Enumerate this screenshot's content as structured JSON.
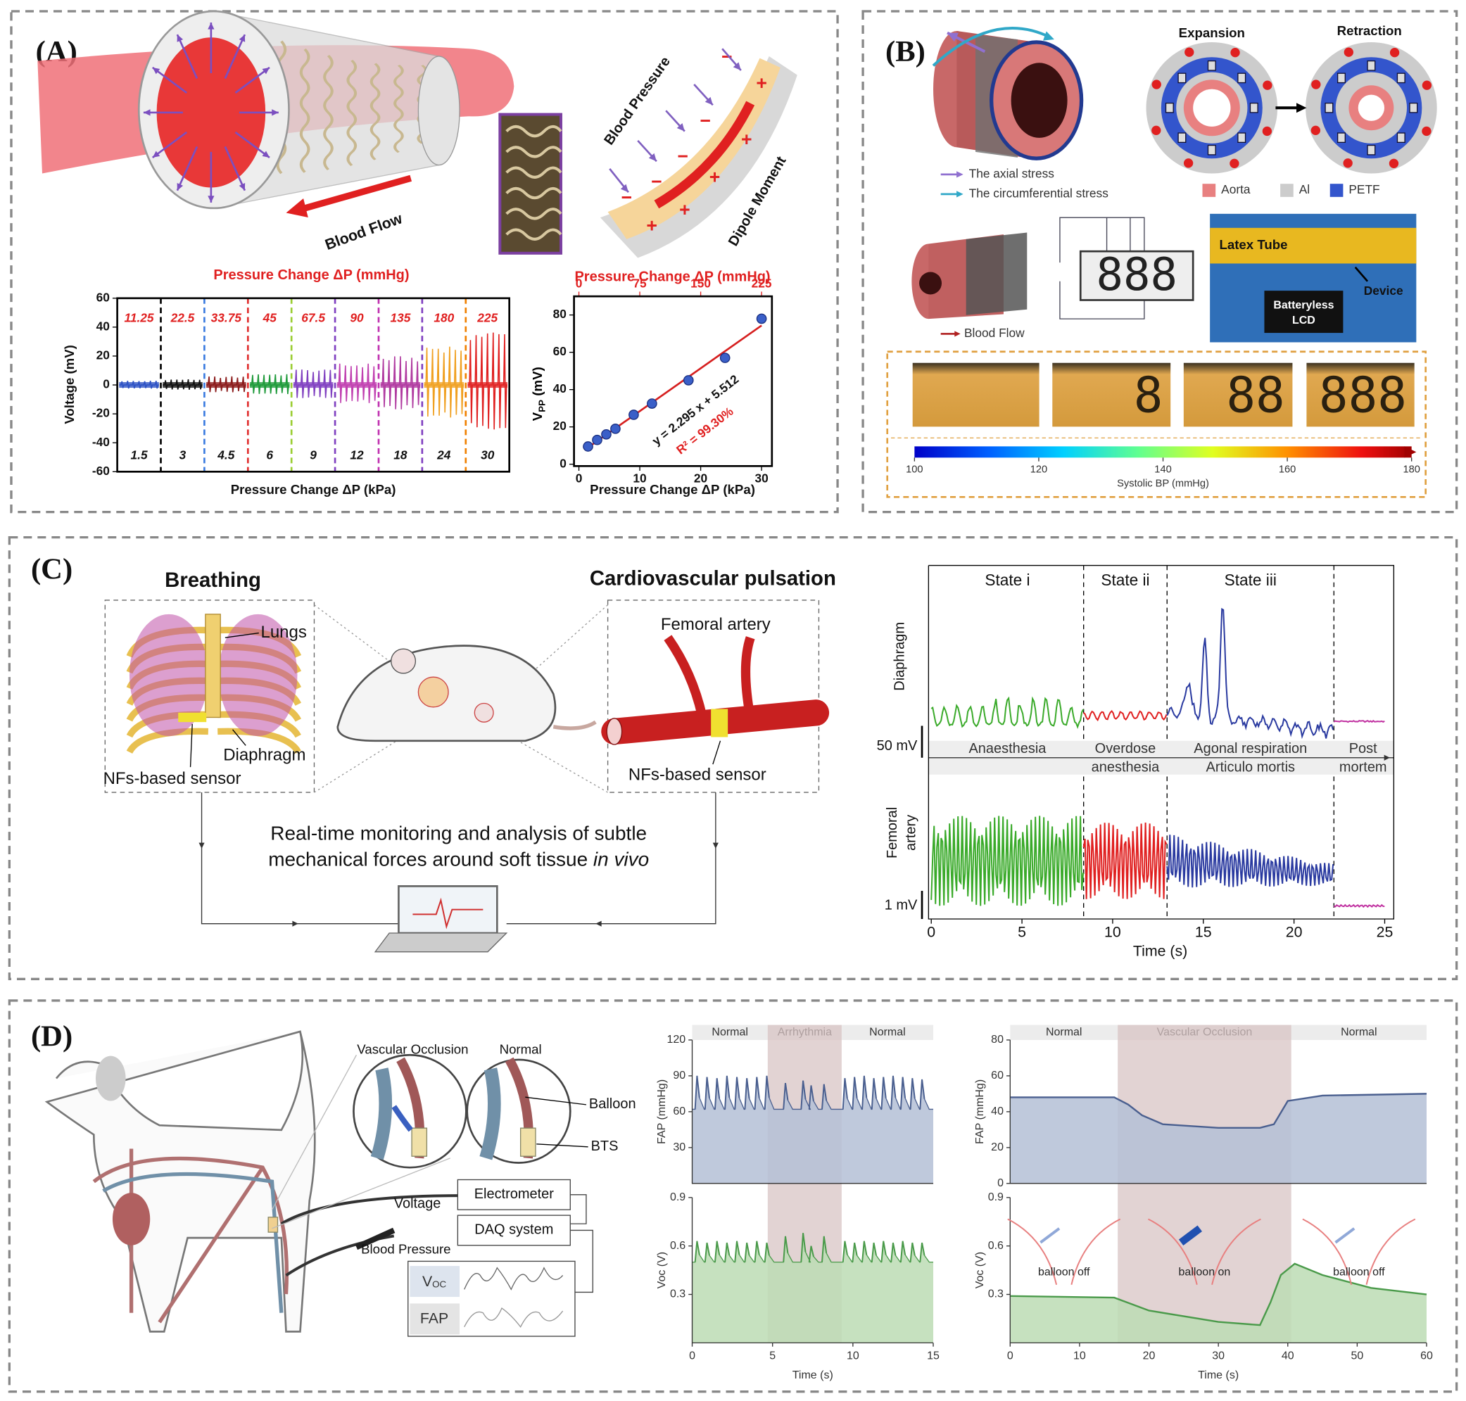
{
  "panel_a": {
    "label": "(A)",
    "diagram": {
      "blood_flow": "Blood Flow",
      "blood_pressure": "Blood Pressure",
      "dipole_moment": "Dipole Moment"
    },
    "chart_data": [
      {
        "type": "segmented-signal",
        "title": "Pressure Change ΔP (mmHg)",
        "xlabel": "Pressure Change ΔP (kPa)",
        "ylabel": "Voltage (mV)",
        "ylim": [
          -60,
          60
        ],
        "yticks": [
          -60,
          -40,
          -20,
          0,
          20,
          40,
          60
        ],
        "segments": [
          {
            "top_label": 11.25,
            "bottom_label": 1.5,
            "color": "#2d52c4",
            "amplitude": 3
          },
          {
            "top_label": 22.5,
            "bottom_label": 3,
            "color": "#111111",
            "amplitude": 4,
            "divider_color": "#000000"
          },
          {
            "top_label": 33.75,
            "bottom_label": 4.5,
            "color": "#8b1a1a",
            "amplitude": 6,
            "divider_color": "#3a7be0"
          },
          {
            "top_label": 45,
            "bottom_label": 6,
            "color": "#1e9a3a",
            "amplitude": 8,
            "divider_color": "#e03030"
          },
          {
            "top_label": 67.5,
            "bottom_label": 9,
            "color": "#8040c0",
            "amplitude": 11,
            "divider_color": "#9acd32"
          },
          {
            "top_label": 90,
            "bottom_label": 12,
            "color": "#c040b0",
            "amplitude": 15,
            "divider_color": "#8040c0"
          },
          {
            "top_label": 135,
            "bottom_label": 18,
            "color": "#b03aa0",
            "amplitude": 20,
            "divider_color": "#c030b0"
          },
          {
            "top_label": 180,
            "bottom_label": 24,
            "color": "#f0a020",
            "amplitude": 28,
            "divider_color": "#8040c0"
          },
          {
            "top_label": 225,
            "bottom_label": 30,
            "color": "#e02020",
            "amplitude": 38,
            "divider_color": "#f08000"
          }
        ]
      },
      {
        "type": "scatter",
        "xlabel": "Pressure Change ΔP (kPa)",
        "x2label": "Pressure Change ΔP (mmHg)",
        "ylabel": "V",
        "ylabel_subscript": "PP",
        "ylabel_unit": "(mV)",
        "x": [
          1.5,
          3,
          4.5,
          6,
          9,
          12,
          18,
          24,
          30
        ],
        "values": [
          9.5,
          13,
          16,
          19,
          26.5,
          32.5,
          45,
          57,
          78
        ],
        "xlim": [
          -0.8,
          31.7
        ],
        "xticks": [
          0,
          10,
          20,
          30
        ],
        "x2lim": [
          -6,
          237.75
        ],
        "x2ticks": [
          0,
          75,
          150,
          225
        ],
        "ylim": [
          -1,
          90
        ],
        "yticks": [
          0,
          20,
          40,
          60,
          80
        ],
        "color": "#3a5fc8",
        "fit": {
          "slope": 2.295,
          "intercept": 5.512,
          "color": "#d62020"
        },
        "equation": "y = 2.295 x + 5.512",
        "r2": "R² = 99.30%"
      }
    ]
  },
  "panel_b": {
    "label": "(B)",
    "expansion": "Expansion",
    "retraction": "Retraction",
    "axial": "The axial stress",
    "circumferential": "The circumferential stress",
    "legend": [
      {
        "name": "Aorta",
        "color": "#e88080"
      },
      {
        "name": "Al",
        "color": "#cccccc"
      },
      {
        "name": "PETF",
        "color": "#3355cc"
      }
    ],
    "blood_flow": "Blood Flow",
    "lcd_digits": "888",
    "latex_tube": "Latex Tube",
    "device": "Device",
    "batteryless": "Batteryless",
    "lcd": "LCD",
    "frames": [
      "8",
      "88",
      "888"
    ],
    "colorbar": {
      "label": "Systolic BP (mmHg)",
      "clim": [
        100,
        180
      ],
      "ticks": [
        100,
        120,
        140,
        160,
        180
      ]
    }
  },
  "panel_c": {
    "label": "(C)",
    "breathing": "Breathing",
    "cardio": "Cardiovascular pulsation",
    "lungs": "Lungs",
    "diaphragm": "Diaphragm",
    "sensor_left": "NFs-based sensor",
    "femoral": "Femoral artery",
    "sensor_right": "NFs-based sensor",
    "caption_line1": "Real-time monitoring and analysis of subtle",
    "caption_line2": "mechanical forces around soft tissue ",
    "caption_italic": "in vivo",
    "chart_data": {
      "type": "state-signal",
      "xlabel": "Time (s)",
      "xlim": [
        -0.15,
        25.5
      ],
      "xticks": [
        0,
        5,
        10,
        15,
        20,
        25
      ],
      "states": [
        "State i",
        "State ii",
        "State iii"
      ],
      "dividers": [
        8.4,
        13,
        22.2
      ],
      "rows": {
        "top": "Diaphragm",
        "bottom_line1": "Femoral",
        "bottom_line2": "artery"
      },
      "scale_top": "50 mV",
      "scale_bottom": "1 mV",
      "colors": [
        "#3aaa2a",
        "#e02020",
        "#2a3aa0",
        "#c030a0"
      ],
      "phases": [
        {
          "lines": [
            "Anaesthesia"
          ]
        },
        {
          "lines": [
            "Overdose",
            "anesthesia"
          ]
        },
        {
          "lines": [
            "Agonal respiration",
            "Articulo mortis"
          ]
        },
        {
          "lines": [
            "Post",
            "mortem"
          ]
        }
      ]
    }
  },
  "panel_d": {
    "label": "(D)",
    "occlusion": "Vascular Occlusion",
    "normal": "Normal",
    "balloon": "Balloon",
    "bts": "BTS",
    "voltage": "Voltage",
    "electrometer": "Electrometer",
    "daq": "DAQ system",
    "blood_pressure": "Blood Pressure",
    "voc_label": "V",
    "voc_subscript": "OC",
    "fap_label": "FAP",
    "chart_data": [
      {
        "type": "pulse",
        "xlabel": "Time (s)",
        "xlim": [
          0,
          15
        ],
        "xticks": [
          0,
          5,
          10,
          15
        ],
        "regions": [
          "Normal",
          "Arrhythmia",
          "Normal"
        ],
        "highlight": [
          4.7,
          9.3
        ],
        "top": {
          "ylabel": "FAP (mmHg)",
          "ylim": [
            0,
            120
          ],
          "yticks": [
            30,
            60,
            90,
            120
          ],
          "color": "#4a5f8f",
          "fill": "#b4c0d6",
          "trough": 62,
          "x": [
            0.3,
            0.92,
            1.54,
            2.16,
            2.78,
            3.4,
            4.02,
            4.64,
            5.8,
            6.9,
            7.4,
            8.2,
            9.5,
            10.1,
            10.7,
            11.3,
            11.9,
            12.5,
            13.1,
            13.7,
            14.3
          ],
          "values": [
            90,
            89,
            88,
            90,
            89,
            88,
            89,
            90,
            84,
            86,
            82,
            83,
            88,
            89,
            90,
            88,
            89,
            90,
            89,
            88,
            87
          ]
        },
        "bottom": {
          "ylabel": "Voc (V)",
          "ylim": [
            0,
            0.9
          ],
          "yticks": [
            0.3,
            0.6,
            0.9
          ],
          "color": "#4a9a4a",
          "fill": "#bcdcb4",
          "trough": 0.5,
          "x": [
            0.3,
            0.92,
            1.54,
            2.16,
            2.78,
            3.4,
            4.02,
            4.64,
            5.8,
            6.9,
            7.4,
            8.2,
            9.5,
            10.1,
            10.7,
            11.3,
            11.9,
            12.5,
            13.1,
            13.7,
            14.3
          ],
          "values": [
            0.63,
            0.62,
            0.63,
            0.62,
            0.63,
            0.62,
            0.63,
            0.62,
            0.66,
            0.68,
            0.6,
            0.66,
            0.63,
            0.62,
            0.63,
            0.62,
            0.63,
            0.62,
            0.63,
            0.62,
            0.62
          ]
        }
      },
      {
        "type": "level",
        "xlabel": "Time (s)",
        "xlim": [
          0,
          60
        ],
        "xticks": [
          0,
          10,
          20,
          30,
          40,
          50,
          60
        ],
        "regions": [
          "Normal",
          "Vascular Occlusion",
          "Normal"
        ],
        "highlight": [
          15.5,
          40.5
        ],
        "annotations": [
          "balloon off",
          "balloon on",
          "balloon off"
        ],
        "top": {
          "ylabel": "FAP (mmHg)",
          "ylim": [
            0,
            80
          ],
          "yticks": [
            0,
            20,
            40,
            60,
            80
          ],
          "color": "#4a5f8f",
          "fill": "#b4c0d6",
          "x": [
            0,
            15,
            17,
            19,
            22,
            30,
            36,
            38,
            40,
            45,
            60
          ],
          "values": [
            48,
            48,
            44,
            38,
            33,
            31,
            31,
            33,
            46,
            49,
            50
          ]
        },
        "bottom": {
          "ylabel": "Voc (V)",
          "ylim": [
            0,
            0.9
          ],
          "yticks": [
            0.3,
            0.6,
            0.9
          ],
          "color": "#4a9a4a",
          "fill": "#bcdcb4",
          "x": [
            0,
            15,
            20,
            30,
            36,
            37.5,
            39,
            41,
            45,
            52,
            60
          ],
          "values": [
            0.29,
            0.28,
            0.2,
            0.13,
            0.11,
            0.25,
            0.42,
            0.49,
            0.42,
            0.34,
            0.3
          ]
        }
      }
    ]
  }
}
